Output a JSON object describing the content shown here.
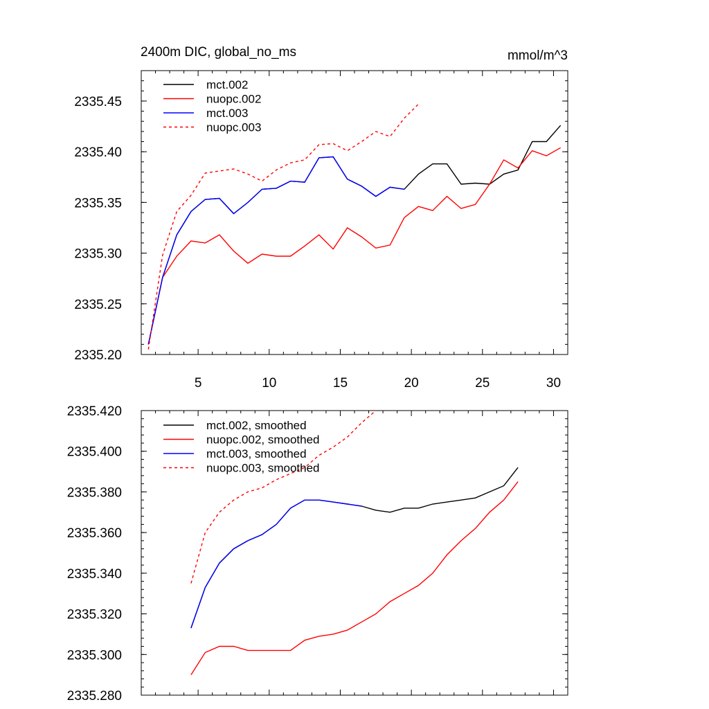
{
  "chart_data": [
    {
      "type": "line",
      "title": "2400m DIC, global_no_ms",
      "units": "mmol/m^3",
      "xlim": [
        1,
        31
      ],
      "ylim": [
        2335.2,
        2335.48
      ],
      "xticks": [
        5,
        10,
        15,
        20,
        25,
        30
      ],
      "yticks": [
        2335.2,
        2335.25,
        2335.3,
        2335.35,
        2335.4,
        2335.45
      ],
      "ytick_labels": [
        "2335.20",
        "2335.25",
        "2335.30",
        "2335.35",
        "2335.40",
        "2335.45"
      ],
      "legend_position": "top-left",
      "series": [
        {
          "name": "mct.002",
          "color": "#000000",
          "dash": false,
          "x": [
            1.5,
            2.5,
            3.5,
            4.5,
            5.5,
            6.5,
            7.5,
            8.5,
            9.5,
            10.5,
            11.5,
            12.5,
            13.5,
            14.5,
            15.5,
            16.5,
            17.5,
            18.5,
            19.5,
            20.5,
            21.5,
            22.5,
            23.5,
            24.5,
            25.5,
            26.5,
            27.5,
            28.5,
            29.5,
            30.5
          ],
          "values": [
            2335.21,
            2335.276,
            2335.318,
            2335.341,
            2335.353,
            2335.354,
            2335.339,
            2335.35,
            2335.363,
            2335.364,
            2335.371,
            2335.37,
            2335.394,
            2335.395,
            2335.373,
            2335.366,
            2335.356,
            2335.365,
            2335.363,
            2335.378,
            2335.388,
            2335.388,
            2335.368,
            2335.369,
            2335.368,
            2335.378,
            2335.382,
            2335.41,
            2335.41,
            2335.426
          ]
        },
        {
          "name": "nuopc.002",
          "color": "#ff0000",
          "dash": false,
          "x": [
            1.5,
            2.5,
            3.5,
            4.5,
            5.5,
            6.5,
            7.5,
            8.5,
            9.5,
            10.5,
            11.5,
            12.5,
            13.5,
            14.5,
            15.5,
            16.5,
            17.5,
            18.5,
            19.5,
            20.5,
            21.5,
            22.5,
            23.5,
            24.5,
            25.5,
            26.5,
            27.5,
            28.5,
            29.5,
            30.5
          ],
          "values": [
            2335.21,
            2335.276,
            2335.297,
            2335.312,
            2335.31,
            2335.318,
            2335.302,
            2335.29,
            2335.299,
            2335.297,
            2335.297,
            2335.307,
            2335.318,
            2335.304,
            2335.325,
            2335.316,
            2335.305,
            2335.308,
            2335.335,
            2335.346,
            2335.342,
            2335.356,
            2335.344,
            2335.348,
            2335.368,
            2335.392,
            2335.384,
            2335.401,
            2335.396,
            2335.404
          ]
        },
        {
          "name": "mct.003",
          "color": "#0000ff",
          "dash": false,
          "x": [
            1.5,
            2.5,
            3.5,
            4.5,
            5.5,
            6.5,
            7.5,
            8.5,
            9.5,
            10.5,
            11.5,
            12.5,
            13.5,
            14.5,
            15.5,
            16.5,
            17.5,
            18.5,
            19.5
          ],
          "values": [
            2335.21,
            2335.276,
            2335.318,
            2335.341,
            2335.353,
            2335.354,
            2335.339,
            2335.35,
            2335.363,
            2335.364,
            2335.371,
            2335.37,
            2335.394,
            2335.395,
            2335.373,
            2335.366,
            2335.356,
            2335.365,
            2335.363
          ]
        },
        {
          "name": "nuopc.003",
          "color": "#ff0000",
          "dash": true,
          "x": [
            1.5,
            2.5,
            3.5,
            4.5,
            5.5,
            6.5,
            7.5,
            8.5,
            9.5,
            10.5,
            11.5,
            12.5,
            13.5,
            14.5,
            15.5,
            16.5,
            17.5,
            18.5,
            19.5,
            20.5
          ],
          "values": [
            2335.205,
            2335.298,
            2335.341,
            2335.357,
            2335.379,
            2335.381,
            2335.383,
            2335.378,
            2335.371,
            2335.382,
            2335.389,
            2335.392,
            2335.407,
            2335.408,
            2335.401,
            2335.41,
            2335.42,
            2335.415,
            2335.433,
            2335.447
          ]
        }
      ]
    },
    {
      "type": "line",
      "title": "",
      "xlim": [
        1,
        31
      ],
      "ylim": [
        2335.28,
        2335.42
      ],
      "xticks": [
        5,
        10,
        15,
        20,
        25,
        30
      ],
      "yticks": [
        2335.28,
        2335.3,
        2335.32,
        2335.34,
        2335.36,
        2335.38,
        2335.4,
        2335.42
      ],
      "ytick_labels": [
        "2335.280",
        "2335.300",
        "2335.320",
        "2335.340",
        "2335.360",
        "2335.380",
        "2335.400",
        "2335.420"
      ],
      "legend_position": "top-left",
      "series": [
        {
          "name": "mct.002, smoothed",
          "color": "#000000",
          "dash": false,
          "x": [
            4.5,
            5.5,
            6.5,
            7.5,
            8.5,
            9.5,
            10.5,
            11.5,
            12.5,
            13.5,
            14.5,
            15.5,
            16.5,
            17.5,
            18.5,
            19.5,
            20.5,
            21.5,
            22.5,
            23.5,
            24.5,
            25.5,
            26.5,
            27.5
          ],
          "values": [
            2335.313,
            2335.333,
            2335.345,
            2335.352,
            2335.356,
            2335.359,
            2335.364,
            2335.372,
            2335.376,
            2335.376,
            2335.375,
            2335.374,
            2335.373,
            2335.371,
            2335.37,
            2335.372,
            2335.372,
            2335.374,
            2335.375,
            2335.376,
            2335.377,
            2335.38,
            2335.383,
            2335.392
          ]
        },
        {
          "name": "nuopc.002, smoothed",
          "color": "#ff0000",
          "dash": false,
          "x": [
            4.5,
            5.5,
            6.5,
            7.5,
            8.5,
            9.5,
            10.5,
            11.5,
            12.5,
            13.5,
            14.5,
            15.5,
            16.5,
            17.5,
            18.5,
            19.5,
            20.5,
            21.5,
            22.5,
            23.5,
            24.5,
            25.5,
            26.5,
            27.5
          ],
          "values": [
            2335.29,
            2335.301,
            2335.304,
            2335.304,
            2335.302,
            2335.302,
            2335.302,
            2335.302,
            2335.307,
            2335.309,
            2335.31,
            2335.312,
            2335.316,
            2335.32,
            2335.326,
            2335.33,
            2335.334,
            2335.34,
            2335.349,
            2335.356,
            2335.362,
            2335.37,
            2335.376,
            2335.385
          ]
        },
        {
          "name": "mct.003, smoothed",
          "color": "#0000ff",
          "dash": false,
          "x": [
            4.5,
            5.5,
            6.5,
            7.5,
            8.5,
            9.5,
            10.5,
            11.5,
            12.5,
            13.5,
            14.5,
            15.5,
            16.5
          ],
          "values": [
            2335.313,
            2335.333,
            2335.345,
            2335.352,
            2335.356,
            2335.359,
            2335.364,
            2335.372,
            2335.376,
            2335.376,
            2335.375,
            2335.374,
            2335.373
          ]
        },
        {
          "name": "nuopc.003, smoothed",
          "color": "#ff0000",
          "dash": true,
          "x": [
            4.5,
            5.5,
            6.5,
            7.5,
            8.5,
            9.5,
            10.5,
            11.5,
            12.5,
            13.5,
            14.5,
            15.5,
            16.5,
            17.5
          ],
          "values": [
            2335.335,
            2335.36,
            2335.37,
            2335.376,
            2335.38,
            2335.382,
            2335.386,
            2335.389,
            2335.392,
            2335.398,
            2335.402,
            2335.407,
            2335.414,
            2335.42
          ]
        }
      ]
    }
  ]
}
